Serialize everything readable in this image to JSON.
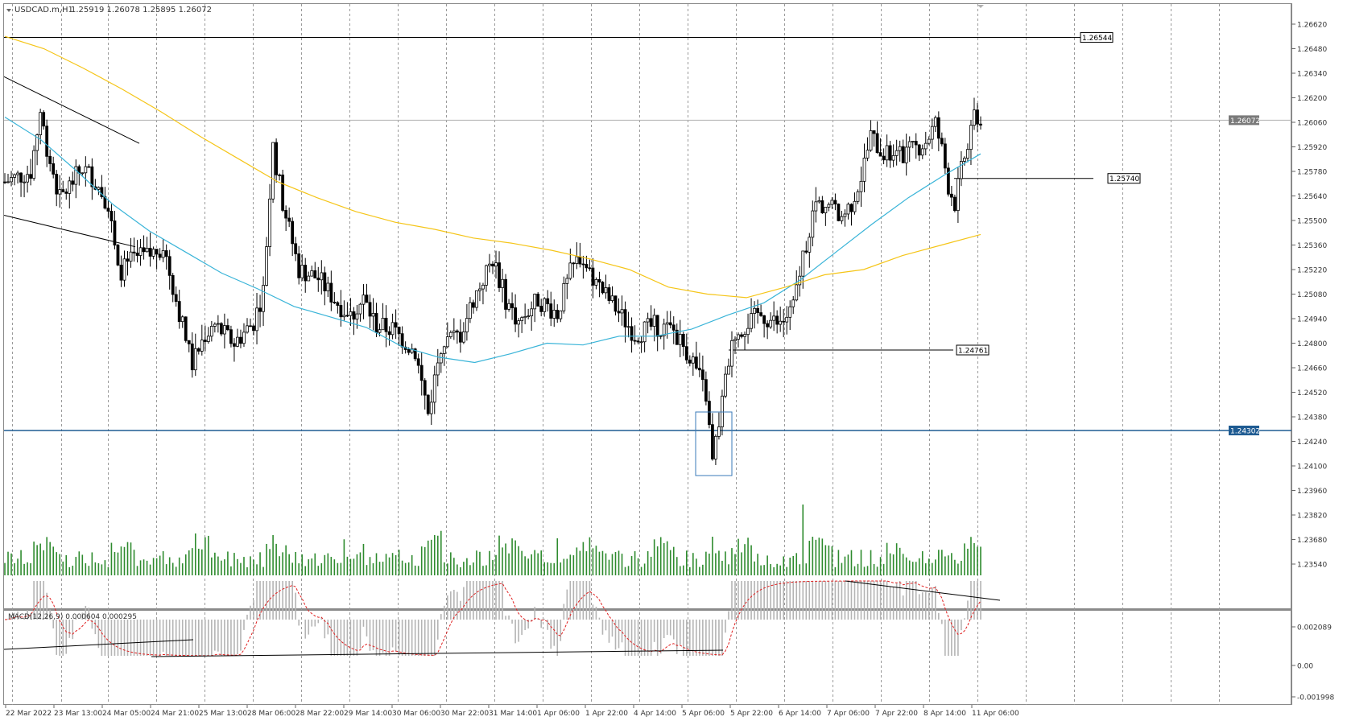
{
  "header": {
    "symbol_text": "USDCAD.m,H1",
    "ohlc_text": "1.25919 1.26078 1.25895 1.26072"
  },
  "macd": {
    "label": "MACD(12,26,9) 0.000604 0.000295",
    "ticks": [
      "0.002089",
      "0.00",
      "-0.001998"
    ]
  },
  "price_axis": {
    "ticks": [
      "1.26620",
      "1.26480",
      "1.26340",
      "1.26200",
      "1.26060",
      "1.25920",
      "1.25780",
      "1.25640",
      "1.25500",
      "1.25360",
      "1.25220",
      "1.25080",
      "1.24940",
      "1.24800",
      "1.24660",
      "1.24520",
      "1.24380",
      "1.24240",
      "1.24100",
      "1.23960",
      "1.23820",
      "1.23680",
      "1.23540"
    ]
  },
  "time_axis": {
    "labels": [
      "22 Mar 2022",
      "23 Mar 13:00",
      "24 Mar 05:00",
      "24 Mar 21:00",
      "25 Mar 13:00",
      "28 Mar 06:00",
      "28 Mar 22:00",
      "29 Mar 14:00",
      "30 Mar 06:00",
      "30 Mar 22:00",
      "31 Mar 14:00",
      "1 Apr 06:00",
      "1 Apr 22:00",
      "4 Apr 14:00",
      "5 Apr 06:00",
      "5 Apr 22:00",
      "6 Apr 14:00",
      "7 Apr 06:00",
      "7 Apr 22:00",
      "8 Apr 14:00",
      "11 Apr 06:00"
    ]
  },
  "levels": {
    "top_line": "1.26544",
    "current_price": "1.26072",
    "mid_line": "1.25740",
    "lower_line": "1.24761",
    "support_line": "1.24302"
  },
  "colors": {
    "bull_candle": "#ffffff",
    "bear_candle": "#000000",
    "ma_slow": "#f5c518",
    "ma_fast": "#39b4d8",
    "volume": "#2e8b2e",
    "macd_hist": "#b4b4b4",
    "macd_signal": "#e02020",
    "support": "#1f5b92",
    "box": "#3a7ab8"
  },
  "chart_data": {
    "type": "candlestick",
    "symbol": "USDCAD.m",
    "timeframe": "H1",
    "ylim": [
      1.2354,
      1.267
    ],
    "price_points": [
      {
        "x": "22 Mar 2022",
        "y": 1.2572
      },
      {
        "x": "23 Mar 13:00",
        "y": 1.2578
      },
      {
        "x": "23 Mar 13:00",
        "y": 1.2612
      },
      {
        "x": "24 Mar 05:00",
        "y": 1.2562
      },
      {
        "x": "24 Mar 05:00",
        "y": 1.258
      },
      {
        "x": "24 Mar 21:00",
        "y": 1.2536
      },
      {
        "x": "25 Mar 13:00",
        "y": 1.2468
      },
      {
        "x": "25 Mar 13:00",
        "y": 1.249
      },
      {
        "x": "28 Mar 06:00",
        "y": 1.2495
      },
      {
        "x": "28 Mar 06:00",
        "y": 1.2592
      },
      {
        "x": "28 Mar 22:00",
        "y": 1.2522
      },
      {
        "x": "29 Mar 14:00",
        "y": 1.2507
      },
      {
        "x": "29 Mar 14:00",
        "y": 1.249
      },
      {
        "x": "30 Mar 06:00",
        "y": 1.2481
      },
      {
        "x": "30 Mar 06:00",
        "y": 1.244
      },
      {
        "x": "30 Mar 22:00",
        "y": 1.249
      },
      {
        "x": "30 Mar 22:00",
        "y": 1.252
      },
      {
        "x": "31 Mar 14:00",
        "y": 1.2487
      },
      {
        "x": "31 Mar 14:00",
        "y": 1.2505
      },
      {
        "x": "1 Apr 06:00",
        "y": 1.2497
      },
      {
        "x": "1 Apr 06:00",
        "y": 1.253
      },
      {
        "x": "1 Apr 22:00",
        "y": 1.2512
      },
      {
        "x": "1 Apr 22:00",
        "y": 1.249
      },
      {
        "x": "4 Apr 14:00",
        "y": 1.2487
      },
      {
        "x": "4 Apr 14:00",
        "y": 1.2482
      },
      {
        "x": "5 Apr 06:00",
        "y": 1.247
      },
      {
        "x": "5 Apr 06:00",
        "y": 1.2412
      },
      {
        "x": "5 Apr 22:00",
        "y": 1.2482
      },
      {
        "x": "5 Apr 22:00",
        "y": 1.249
      },
      {
        "x": "6 Apr 14:00",
        "y": 1.2496
      },
      {
        "x": "6 Apr 14:00",
        "y": 1.2562
      },
      {
        "x": "7 Apr 06:00",
        "y": 1.256
      },
      {
        "x": "7 Apr 06:00",
        "y": 1.2596
      },
      {
        "x": "7 Apr 22:00",
        "y": 1.2585
      },
      {
        "x": "7 Apr 22:00",
        "y": 1.2602
      },
      {
        "x": "8 Apr 14:00",
        "y": 1.258
      },
      {
        "x": "8 Apr 14:00",
        "y": 1.2568
      },
      {
        "x": "11 Apr 06:00",
        "y": 1.2613
      },
      {
        "x": "11 Apr 06:00",
        "y": 1.26072
      }
    ],
    "series": [
      {
        "values": [
          1.2609,
          1.2596,
          1.2578,
          1.2559,
          1.2544,
          1.2532,
          1.252,
          1.2511,
          1.2501,
          1.2495,
          1.2489,
          1.2478,
          1.2472,
          1.2469,
          1.2474,
          1.248,
          1.2479,
          1.2484,
          1.2484,
          1.2488,
          1.2496,
          1.2503,
          1.2516,
          1.2532,
          1.2548,
          1.2563,
          1.2576,
          1.2588
        ]
      },
      {
        "values": [
          1.2655,
          1.2648,
          1.2637,
          1.2625,
          1.2612,
          1.2598,
          1.2585,
          1.2572,
          1.2563,
          1.2555,
          1.2549,
          1.2545,
          1.254,
          1.2537,
          1.2533,
          1.2528,
          1.2522,
          1.2512,
          1.2508,
          1.2506,
          1.2512,
          1.2519,
          1.2522,
          1.253,
          1.2536,
          1.2542
        ]
      }
    ]
  }
}
